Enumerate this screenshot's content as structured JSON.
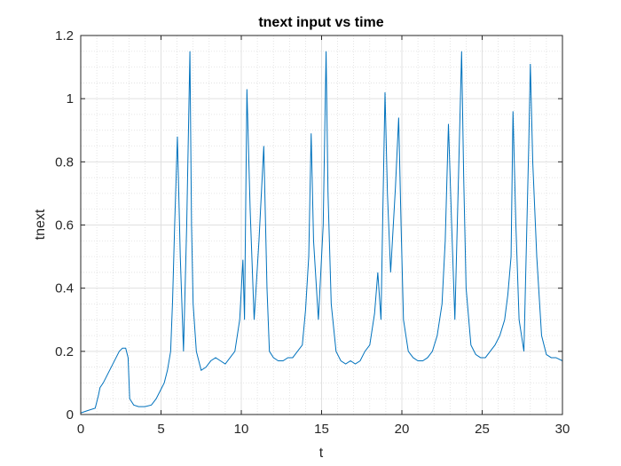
{
  "chart_data": {
    "type": "line",
    "title": "tnext  input vs time",
    "xlabel": "t",
    "ylabel": "tnext",
    "xlim": [
      0,
      30
    ],
    "ylim": [
      0,
      1.2
    ],
    "xticks": [
      0,
      5,
      10,
      15,
      20,
      25,
      30
    ],
    "xtick_labels": [
      "0",
      "5",
      "10",
      "15",
      "20",
      "25",
      "30"
    ],
    "yticks": [
      0,
      0.2,
      0.4,
      0.6,
      0.8,
      1.0,
      1.2
    ],
    "ytick_labels": [
      "0",
      "0.2",
      "0.4",
      "0.6",
      "0.8",
      "1",
      "1.2"
    ],
    "grid": true,
    "minor_grid": true,
    "line_color": "#0072BD",
    "series": [
      {
        "name": "",
        "x": [
          0,
          0.4,
          0.9,
          1.1,
          1.2,
          1.4,
          1.6,
          1.8,
          2.0,
          2.2,
          2.4,
          2.6,
          2.8,
          2.95,
          3.05,
          3.3,
          3.6,
          4.0,
          4.4,
          4.7,
          5.0,
          5.2,
          5.4,
          5.6,
          5.72,
          5.85,
          6.02,
          6.2,
          6.4,
          6.6,
          6.8,
          6.9,
          7.0,
          7.2,
          7.5,
          7.8,
          8.1,
          8.4,
          8.7,
          9.0,
          9.3,
          9.6,
          9.9,
          10.1,
          10.2,
          10.35,
          10.55,
          10.8,
          11.1,
          11.4,
          11.6,
          11.75,
          12.0,
          12.3,
          12.6,
          12.9,
          13.2,
          13.5,
          13.8,
          14.0,
          14.2,
          14.35,
          14.5,
          14.8,
          15.1,
          15.28,
          15.4,
          15.6,
          15.9,
          16.2,
          16.5,
          16.8,
          17.1,
          17.4,
          17.7,
          18.0,
          18.3,
          18.5,
          18.7,
          18.8,
          18.95,
          19.1,
          19.3,
          19.6,
          19.8,
          19.95,
          20.1,
          20.4,
          20.7,
          21.0,
          21.3,
          21.6,
          21.9,
          22.2,
          22.5,
          22.7,
          22.9,
          23.1,
          23.3,
          23.5,
          23.72,
          23.85,
          24.0,
          24.3,
          24.6,
          24.9,
          25.2,
          25.5,
          25.8,
          26.1,
          26.4,
          26.6,
          26.8,
          26.92,
          27.1,
          27.3,
          27.6,
          27.9,
          28.0,
          28.15,
          28.4,
          28.7,
          29.0,
          29.3,
          29.6,
          30.0
        ],
        "values": [
          0.005,
          0.012,
          0.02,
          0.06,
          0.085,
          0.1,
          0.12,
          0.14,
          0.16,
          0.18,
          0.2,
          0.21,
          0.21,
          0.18,
          0.05,
          0.03,
          0.025,
          0.025,
          0.03,
          0.05,
          0.08,
          0.1,
          0.14,
          0.2,
          0.36,
          0.6,
          0.88,
          0.5,
          0.2,
          0.6,
          1.15,
          0.6,
          0.35,
          0.2,
          0.14,
          0.15,
          0.17,
          0.18,
          0.17,
          0.16,
          0.18,
          0.2,
          0.3,
          0.49,
          0.3,
          1.03,
          0.65,
          0.3,
          0.55,
          0.85,
          0.4,
          0.2,
          0.18,
          0.17,
          0.17,
          0.18,
          0.18,
          0.2,
          0.22,
          0.33,
          0.5,
          0.89,
          0.55,
          0.3,
          0.6,
          1.15,
          0.7,
          0.35,
          0.2,
          0.17,
          0.16,
          0.17,
          0.16,
          0.17,
          0.2,
          0.22,
          0.32,
          0.45,
          0.3,
          0.6,
          1.02,
          0.7,
          0.45,
          0.72,
          0.94,
          0.6,
          0.3,
          0.2,
          0.18,
          0.17,
          0.17,
          0.18,
          0.2,
          0.25,
          0.35,
          0.55,
          0.92,
          0.6,
          0.3,
          0.7,
          1.15,
          0.75,
          0.4,
          0.22,
          0.19,
          0.18,
          0.18,
          0.2,
          0.22,
          0.25,
          0.3,
          0.38,
          0.5,
          0.96,
          0.6,
          0.3,
          0.2,
          0.85,
          1.11,
          0.8,
          0.5,
          0.25,
          0.19,
          0.18,
          0.18,
          0.17
        ]
      }
    ]
  }
}
